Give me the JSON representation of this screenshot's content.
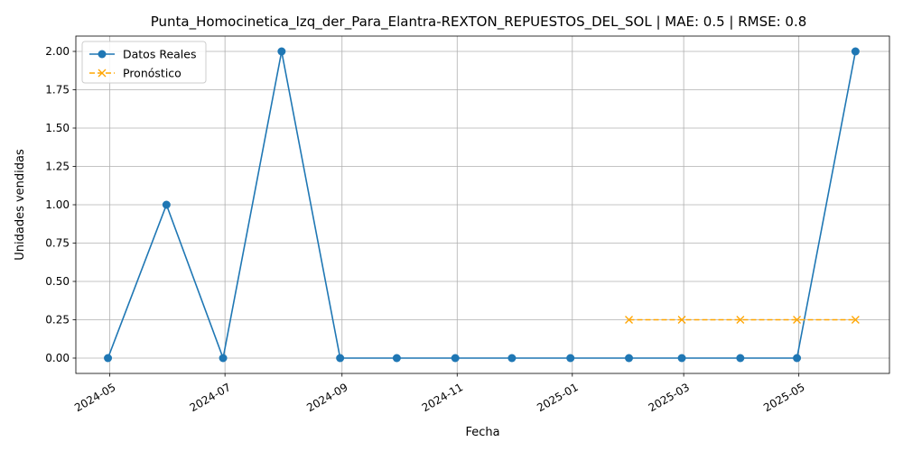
{
  "chart_data": {
    "type": "line",
    "title": "Punta_Homocinetica_Izq_der_Para_Elantra-REXTON_REPUESTOS_DEL_SOL | MAE: 0.5 | RMSE: 0.8",
    "xlabel": "Fecha",
    "ylabel": "Unidades vendidas",
    "xlim": [
      "2024-04-13",
      "2025-06-18"
    ],
    "ylim": [
      -0.1,
      2.1
    ],
    "grid": true,
    "legend_position": "top-left",
    "x_ticks": [
      "2024-05",
      "2024-07",
      "2024-09",
      "2024-11",
      "2025-01",
      "2025-03",
      "2025-05"
    ],
    "y_ticks": [
      "0.00",
      "0.25",
      "0.50",
      "0.75",
      "1.00",
      "1.25",
      "1.50",
      "1.75",
      "2.00"
    ],
    "series": [
      {
        "name": "Datos Reales",
        "color": "#1f77b4",
        "marker": "circle",
        "linestyle": "solid",
        "x": [
          "2024-04-30",
          "2024-05-31",
          "2024-06-30",
          "2024-07-31",
          "2024-08-31",
          "2024-09-30",
          "2024-10-31",
          "2024-11-30",
          "2024-12-31",
          "2025-01-31",
          "2025-02-28",
          "2025-03-31",
          "2025-04-30",
          "2025-05-31"
        ],
        "values": [
          0,
          1,
          0,
          2,
          0,
          0,
          0,
          0,
          0,
          0,
          0,
          0,
          0,
          2
        ]
      },
      {
        "name": "Pronóstico",
        "color": "#ffa500",
        "marker": "x",
        "linestyle": "dashed",
        "x": [
          "2025-01-31",
          "2025-02-28",
          "2025-03-31",
          "2025-04-30",
          "2025-05-31"
        ],
        "values": [
          0.25,
          0.25,
          0.25,
          0.25,
          0.25
        ]
      }
    ]
  }
}
